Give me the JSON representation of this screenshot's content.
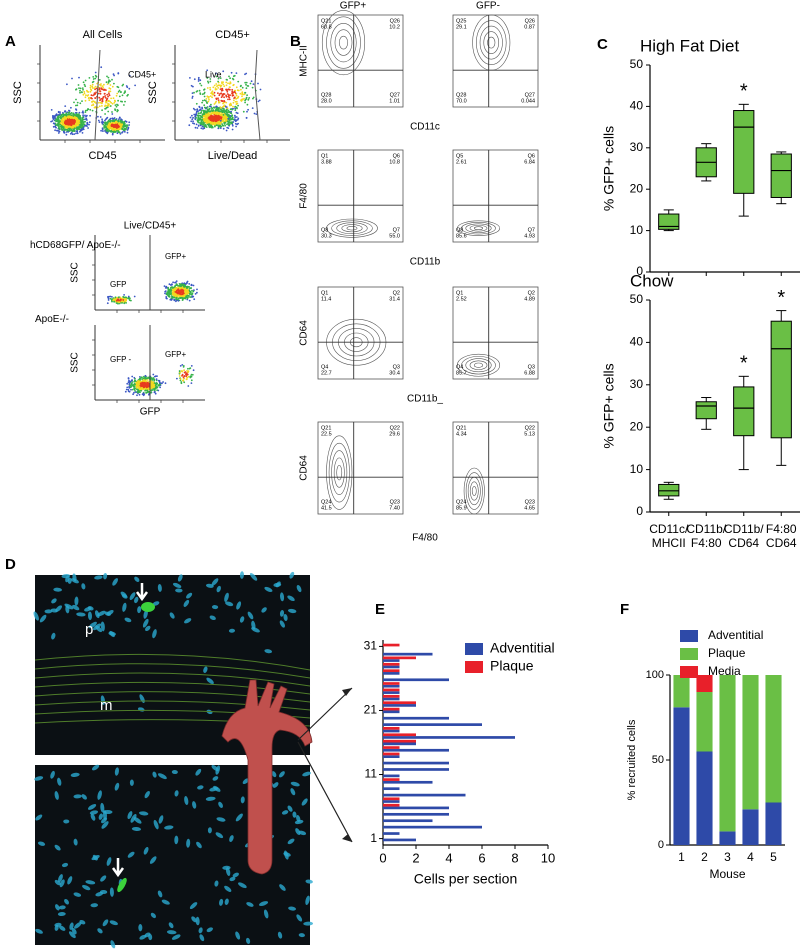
{
  "panel_labels": [
    "A",
    "B",
    "C",
    "D",
    "E",
    "F"
  ],
  "panel_a": {
    "top_plots": [
      {
        "title": "All Cells",
        "x_label": "CD45",
        "y_label": "SSC",
        "gate": "CD45+"
      },
      {
        "title": "CD45+",
        "x_label": "Live/Dead",
        "y_label": "SSC",
        "gate": "Live"
      }
    ],
    "bottom_title": "Live/CD45+",
    "bottom_plots": [
      {
        "group": "hCD68GFP/ ApoE-/-",
        "y_label": "SSC",
        "gates": [
          "GFP",
          "GFP+"
        ]
      },
      {
        "group": "ApoE-/-",
        "y_label": "SSC",
        "gates": [
          "GFP -",
          "GFP+"
        ]
      }
    ],
    "bottom_x_label": "GFP"
  },
  "panel_b": {
    "columns": [
      "GFP+",
      "GFP-"
    ],
    "rows": [
      {
        "y_label": "MHC-II",
        "x_label": "CD11c",
        "quadrants": [
          [
            {
              "name": "Q21",
              "value": "60.8"
            },
            {
              "name": "Q26",
              "value": "10.2"
            },
            {
              "name": "Q28",
              "value": "28.0"
            },
            {
              "name": "Q27",
              "value": "1.01"
            }
          ],
          [
            {
              "name": "Q25",
              "value": "29.1"
            },
            {
              "name": "Q26",
              "value": "0.87"
            },
            {
              "name": "Q28",
              "value": "70.0"
            },
            {
              "name": "Q27",
              "value": "0.044"
            }
          ]
        ]
      },
      {
        "y_label": "F4/80",
        "x_label": "CD11b",
        "quadrants": [
          [
            {
              "name": "Q1",
              "value": "3.88"
            },
            {
              "name": "Q6",
              "value": "10.8"
            },
            {
              "name": "Q8",
              "value": "30.3"
            },
            {
              "name": "Q7",
              "value": "55.0"
            }
          ],
          [
            {
              "name": "Q5",
              "value": "2.61"
            },
            {
              "name": "Q6",
              "value": "6.84"
            },
            {
              "name": "Q8",
              "value": "85.6"
            },
            {
              "name": "Q7",
              "value": "4.93"
            }
          ]
        ]
      },
      {
        "y_label": "CD64",
        "x_label": "CD11b_",
        "quadrants": [
          [
            {
              "name": "Q1",
              "value": "11.4"
            },
            {
              "name": "Q2",
              "value": "31.4"
            },
            {
              "name": "Q4",
              "value": "22.7"
            },
            {
              "name": "Q3",
              "value": "30.4"
            }
          ],
          [
            {
              "name": "Q1",
              "value": "2.52"
            },
            {
              "name": "Q2",
              "value": "4.89"
            },
            {
              "name": "Q4",
              "value": "85.7"
            },
            {
              "name": "Q3",
              "value": "6.88"
            }
          ]
        ]
      },
      {
        "y_label": "CD64",
        "x_label": "F4/80",
        "quadrants": [
          [
            {
              "name": "Q21",
              "value": "22.5"
            },
            {
              "name": "Q22",
              "value": "29.6"
            },
            {
              "name": "Q24",
              "value": "41.5"
            },
            {
              "name": "Q23",
              "value": "7.40"
            }
          ],
          [
            {
              "name": "Q21",
              "value": "4.34"
            },
            {
              "name": "Q22",
              "value": "5.13"
            },
            {
              "name": "Q24",
              "value": "85.9"
            },
            {
              "name": "Q23",
              "value": "4.65"
            }
          ]
        ]
      }
    ]
  },
  "panel_d": {
    "labels": [
      "p",
      "m"
    ]
  },
  "chart_data": [
    {
      "type": "box",
      "title": "High Fat Diet",
      "y_label": "% GFP+ cells",
      "color": "#6abf45",
      "ylim": [
        0,
        50
      ],
      "yticks": [
        0,
        10,
        20,
        30,
        40,
        50
      ],
      "boxes": [
        {
          "min": 10,
          "q1": 10.3,
          "median": 11,
          "q3": 14,
          "max": 15
        },
        {
          "min": 22,
          "q1": 23,
          "median": 26.5,
          "q3": 30,
          "max": 31
        },
        {
          "min": 13.5,
          "q1": 19,
          "median": 35,
          "q3": 39,
          "max": 40.5
        },
        {
          "min": 16.5,
          "q1": 18,
          "median": 24.5,
          "q3": 28.5,
          "max": 29
        }
      ],
      "significance": [
        null,
        null,
        "*",
        null
      ]
    },
    {
      "type": "box",
      "title": "Chow",
      "y_label": "% GFP+ cells",
      "color": "#6abf45",
      "categories": [
        "CD11c/ MHCII",
        "CD11b/ F4:80",
        "CD11b/ CD64",
        "F4:80 CD64"
      ],
      "ylim": [
        0,
        50
      ],
      "yticks": [
        0,
        10,
        20,
        30,
        40,
        50
      ],
      "boxes": [
        {
          "min": 3,
          "q1": 3.8,
          "median": 5,
          "q3": 6.5,
          "max": 7
        },
        {
          "min": 19.5,
          "q1": 22,
          "median": 25,
          "q3": 26,
          "max": 27
        },
        {
          "min": 10,
          "q1": 18,
          "median": 24.5,
          "q3": 29.5,
          "max": 32
        },
        {
          "min": 11,
          "q1": 17.5,
          "median": 38.5,
          "q3": 45,
          "max": 47.5
        }
      ],
      "significance": [
        null,
        null,
        "*",
        "*"
      ]
    },
    {
      "type": "hbar",
      "x_label": "Cells per section",
      "categories": [
        1,
        2,
        3,
        4,
        5,
        6,
        7,
        8,
        9,
        10,
        11,
        12,
        13,
        14,
        15,
        16,
        17,
        18,
        19,
        20,
        21,
        22,
        23,
        24,
        25,
        26,
        27,
        28,
        29,
        30,
        31
      ],
      "series": [
        {
          "name": "Adventitial",
          "color": "#2e4aa8",
          "values": [
            2,
            1,
            6,
            3,
            4,
            4,
            1,
            5,
            1,
            3,
            1,
            4,
            4,
            1,
            4,
            2,
            8,
            1,
            6,
            4,
            1,
            2,
            1,
            1,
            1,
            4,
            1,
            1,
            1,
            3,
            0
          ]
        },
        {
          "name": "Plaque",
          "color": "#e8202a",
          "values": [
            0,
            0,
            0,
            0,
            0,
            1,
            1,
            0,
            0,
            1,
            0,
            0,
            0,
            1,
            1,
            2,
            2,
            1,
            0,
            0,
            1,
            2,
            1,
            1,
            1,
            0,
            1,
            1,
            2,
            0,
            1
          ]
        }
      ],
      "xlim": [
        0,
        10
      ],
      "xticks": [
        0,
        2,
        4,
        6,
        8,
        10
      ],
      "ylim": [
        0,
        32
      ],
      "yticks": [
        1,
        11,
        21,
        31
      ]
    },
    {
      "type": "stacked_bar",
      "x_label": "Mouse",
      "y_label": "% recruited cells",
      "categories": [
        1,
        2,
        3,
        4,
        5
      ],
      "series": [
        {
          "name": "Adventitial",
          "color": "#2e4aa8",
          "values": [
            81,
            55,
            8,
            21,
            25
          ]
        },
        {
          "name": "Plaque",
          "color": "#6abf45",
          "values": [
            19,
            35,
            92,
            79,
            75
          ]
        },
        {
          "name": "Media",
          "color": "#e8202a",
          "values": [
            0,
            10,
            0,
            0,
            0
          ]
        }
      ],
      "ylim": [
        0,
        100
      ],
      "yticks": [
        0,
        50,
        100
      ]
    }
  ]
}
